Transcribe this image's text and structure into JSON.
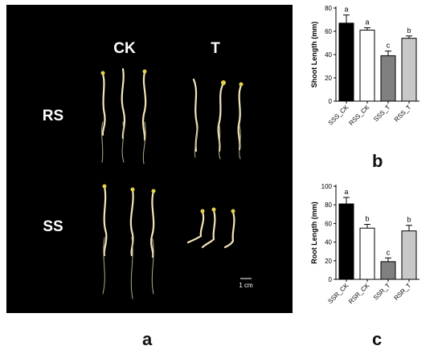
{
  "photo": {
    "col_ck": "CK",
    "col_t": "T",
    "row_rs": "RS",
    "row_ss": "SS",
    "scale_label": "1 cm"
  },
  "panel_labels": {
    "a": "a",
    "b": "b",
    "c": "c"
  },
  "colors": {
    "black": "#000000",
    "white": "#ffffff",
    "dark_gray": "#808080",
    "light_gray": "#c8c8c8"
  },
  "chart_data": [
    {
      "type": "bar",
      "categories": [
        "SSS_CK",
        "RSS_CK",
        "SSS_T",
        "RSS_T"
      ],
      "values": [
        67,
        61,
        39,
        54
      ],
      "errors": [
        7,
        2,
        4,
        2
      ],
      "significance": [
        "a",
        "a",
        "c",
        "b"
      ],
      "fills": [
        "#000000",
        "#ffffff",
        "#808080",
        "#c8c8c8"
      ],
      "title": "",
      "xlabel": "",
      "ylabel": "Shoot Length (mm)",
      "ylim": [
        0,
        80
      ],
      "yticks": [
        0,
        20,
        40,
        60,
        80
      ]
    },
    {
      "type": "bar",
      "categories": [
        "SSR_CK",
        "RSR_CK",
        "SSR_T",
        "RSR_T"
      ],
      "values": [
        81,
        55,
        19,
        52
      ],
      "errors": [
        7,
        4,
        4,
        6
      ],
      "significance": [
        "a",
        "b",
        "c",
        "b"
      ],
      "fills": [
        "#000000",
        "#ffffff",
        "#808080",
        "#c8c8c8"
      ],
      "title": "",
      "xlabel": "",
      "ylabel": "Root Length (mm)",
      "ylim": [
        0,
        100
      ],
      "yticks": [
        0,
        20,
        40,
        60,
        80,
        100
      ]
    }
  ]
}
